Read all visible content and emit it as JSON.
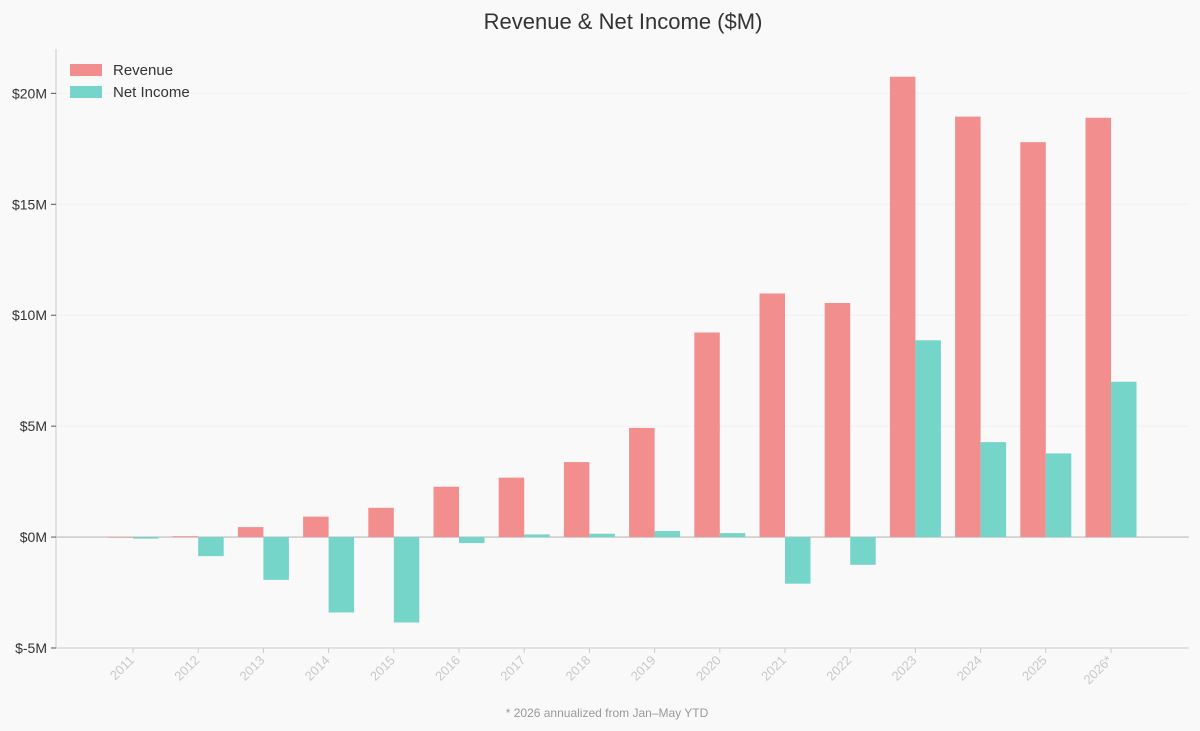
{
  "chart_data": {
    "type": "bar",
    "title": "Revenue & Net Income ($M)",
    "xlabel": "",
    "ylabel": "",
    "categories": [
      "2011",
      "2012",
      "2013",
      "2014",
      "2015",
      "2016",
      "2017",
      "2018",
      "2019",
      "2020",
      "2021",
      "2022",
      "2023",
      "2024",
      "2025",
      "2026*"
    ],
    "series": [
      {
        "name": "Revenue",
        "color": "#f28e8e",
        "values": [
          0.0,
          0.04,
          0.45,
          0.92,
          1.32,
          2.27,
          2.68,
          3.38,
          4.92,
          9.22,
          10.98,
          10.55,
          20.75,
          18.95,
          17.8,
          18.9
        ]
      },
      {
        "name": "Net Income",
        "color": "#76d5c9",
        "values": [
          -0.07,
          -0.86,
          -1.93,
          -3.4,
          -3.85,
          -0.27,
          0.12,
          0.15,
          0.27,
          0.18,
          -2.1,
          -1.25,
          8.87,
          4.28,
          3.77,
          7.0
        ]
      }
    ],
    "ylim": [
      -5,
      22
    ],
    "yticks": [
      -5,
      0,
      5,
      10,
      15,
      20
    ],
    "ytick_labels": [
      "$-5M",
      "$0M",
      "$5M",
      "$10M",
      "$15M",
      "$20M"
    ],
    "grid": true,
    "legend_position": "top-left",
    "footnote": "* 2026 annualized from Jan–May YTD"
  }
}
